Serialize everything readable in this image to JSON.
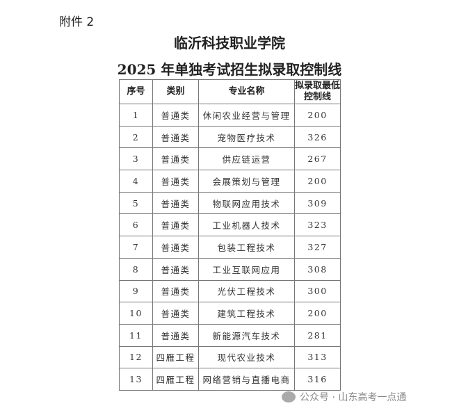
{
  "attachment_label": "附件 2",
  "title": "临沂科技职业学院",
  "subtitle": "2025 年单独考试招生拟录取控制线",
  "table": {
    "headers": [
      "序号",
      "类别",
      "专业名称",
      "拟录取最低控制线"
    ],
    "rows": [
      [
        "1",
        "普通类",
        "休闲农业经营与管理",
        "200"
      ],
      [
        "2",
        "普通类",
        "宠物医疗技术",
        "326"
      ],
      [
        "3",
        "普通类",
        "供应链运营",
        "267"
      ],
      [
        "4",
        "普通类",
        "会展策划与管理",
        "200"
      ],
      [
        "5",
        "普通类",
        "物联网应用技术",
        "309"
      ],
      [
        "6",
        "普通类",
        "工业机器人技术",
        "323"
      ],
      [
        "7",
        "普通类",
        "包装工程技术",
        "327"
      ],
      [
        "8",
        "普通类",
        "工业互联网应用",
        "308"
      ],
      [
        "9",
        "普通类",
        "光伏工程技术",
        "300"
      ],
      [
        "10",
        "普通类",
        "建筑工程技术",
        "200"
      ],
      [
        "11",
        "普通类",
        "新能源汽车技术",
        "281"
      ],
      [
        "12",
        "四雁工程",
        "现代农业技术",
        "313"
      ],
      [
        "13",
        "四雁工程",
        "网络营销与直播电商",
        "316"
      ]
    ]
  },
  "watermark": "公众号 · 山东高考一点通"
}
